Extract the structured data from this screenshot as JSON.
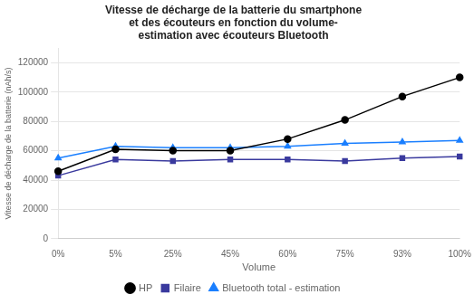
{
  "chart_data": {
    "type": "line",
    "title": "Vitesse de décharge de la batterie du smartphone\net des écouteurs en fonction du volume-\nestimation avec écouteurs Bluetooth",
    "xlabel": "Volume",
    "ylabel": "Vitesse de décharge de la batterie (nAh/s)",
    "categories": [
      "0%",
      "5%",
      "25%",
      "45%",
      "60%",
      "75%",
      "93%",
      "100%"
    ],
    "series": [
      {
        "name": "HP",
        "color": "#000000",
        "marker": "circle",
        "values": [
          46000,
          61000,
          60000,
          60000,
          68000,
          81000,
          97000,
          110000
        ]
      },
      {
        "name": "Filaire",
        "color": "#3a3a9e",
        "marker": "square",
        "values": [
          43000,
          54000,
          53000,
          54000,
          54000,
          53000,
          55000,
          56000
        ]
      },
      {
        "name": "Bluetooth total - estimation",
        "color": "#1a7fff",
        "marker": "triangle",
        "values": [
          55000,
          63000,
          62000,
          62000,
          63000,
          65000,
          66000,
          67000
        ]
      }
    ],
    "ylim": [
      0,
      130000
    ],
    "yticks": [
      0,
      20000,
      40000,
      60000,
      80000,
      100000,
      120000
    ],
    "grid": true,
    "legend": "bottom"
  }
}
